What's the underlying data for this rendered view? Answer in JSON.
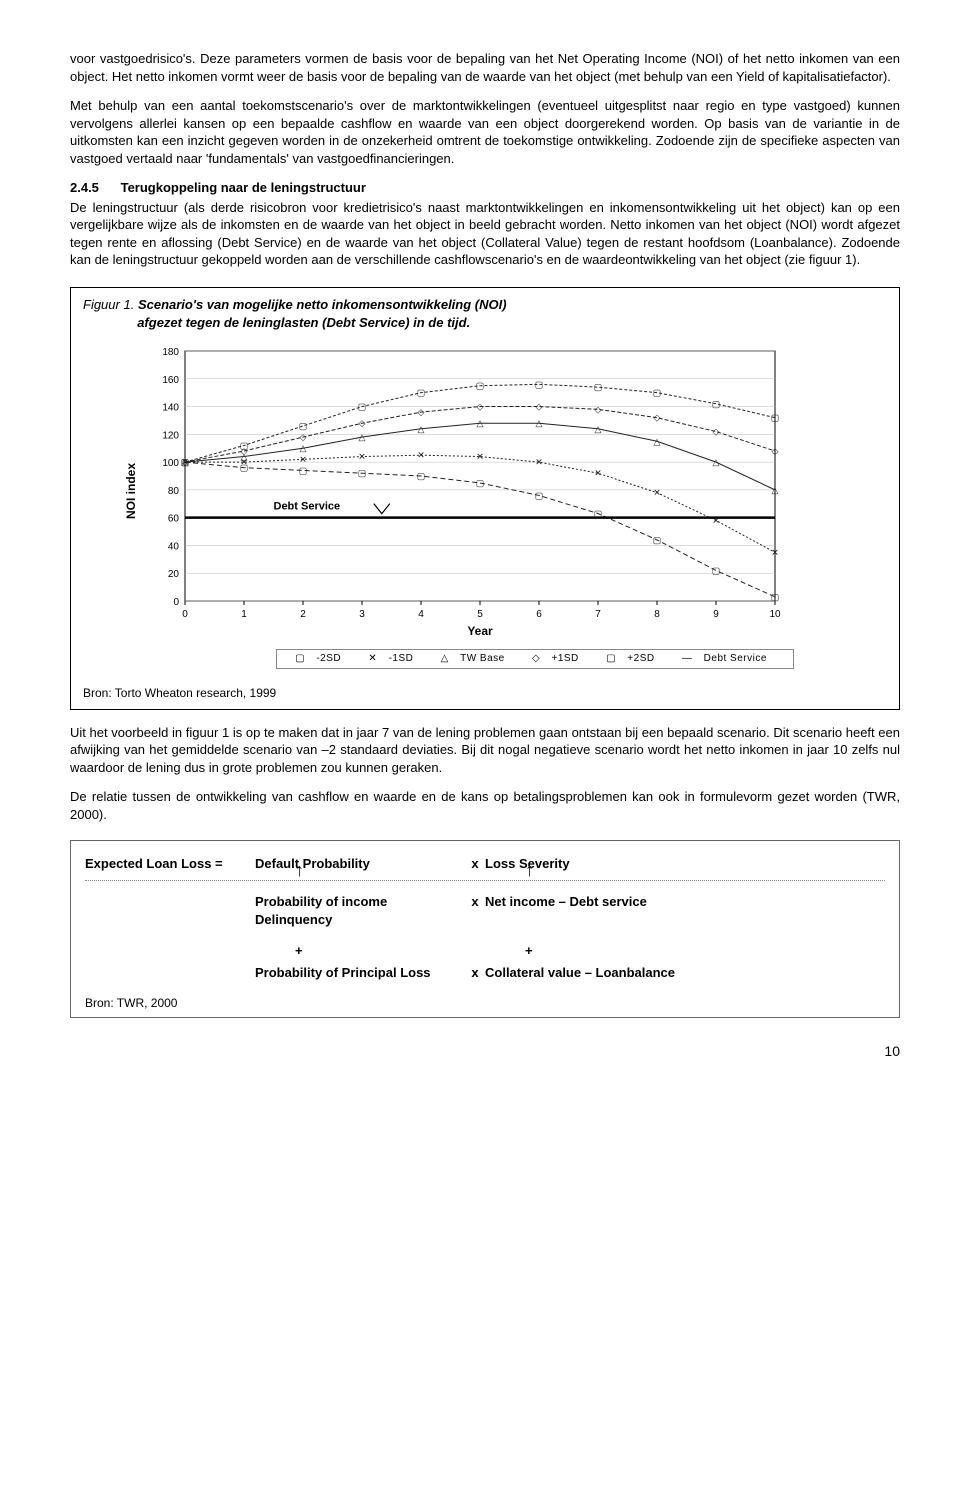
{
  "para1": "voor vastgoedrisico's. Deze parameters vormen de basis voor de bepaling van het Net Operating Income (NOI) of het netto inkomen van een object. Het netto inkomen vormt weer de basis voor de bepaling van de waarde van het object (met behulp van een Yield of kapitalisatiefactor).",
  "para2": "Met behulp van een aantal toekomstscenario's over de marktontwikkelingen (eventueel uitgesplitst naar regio en type vastgoed) kunnen vervolgens allerlei kansen op een bepaalde cashflow en waarde van een object doorgerekend worden. Op basis van de variantie in de uitkomsten kan een inzicht gegeven worden in de onzekerheid omtrent de toekomstige ontwikkeling. Zodoende zijn de specifieke aspecten van vastgoed vertaald naar 'fundamentals' van vastgoedfinancieringen.",
  "section_num": "2.4.5",
  "section_title": "Terugkoppeling naar de leningstructuur",
  "para3": "De leningstructuur (als derde risicobron voor kredietrisico's naast marktontwikkelingen en inkomensontwikkeling uit het object) kan op een vergelijkbare wijze als de inkomsten en de waarde van het object in beeld gebracht worden. Netto inkomen van het object (NOI) wordt afgezet tegen rente en aflossing (Debt Service) en de waarde van het object (Collateral Value) tegen de restant hoofdsom (Loanbalance). Zodoende kan de leningstructuur gekoppeld worden aan de verschillende cashflowscenario's en de waardeontwikkeling van het object (zie figuur 1).",
  "fig_label": "Figuur 1.",
  "fig_caption_l1": "Scenario's van mogelijke netto inkomensontwikkeling (NOI)",
  "fig_caption_l2": "afgezet tegen de leninglasten (Debt Service) in de tijd.",
  "chart": {
    "ylabel": "NOI index",
    "xlabel": "Year",
    "xlim": [
      0,
      10
    ],
    "ylim": [
      0,
      180
    ],
    "ytick_step": 20,
    "xtick_step": 1,
    "debt_label": "Debt Service",
    "background": "#ffffff",
    "grid_color": "#bbbbbb",
    "axis_color": "#000000",
    "line_color": "#222222",
    "series": {
      "m2sd": [
        100,
        96,
        94,
        92,
        90,
        85,
        76,
        63,
        44,
        22,
        3
      ],
      "m1sd": [
        100,
        100,
        102,
        104,
        105,
        104,
        100,
        92,
        78,
        58,
        35
      ],
      "base": [
        100,
        104,
        110,
        118,
        124,
        128,
        128,
        124,
        115,
        100,
        80
      ],
      "p1sd": [
        100,
        108,
        118,
        128,
        136,
        140,
        140,
        138,
        132,
        122,
        108
      ],
      "p2sd": [
        100,
        112,
        126,
        140,
        150,
        155,
        156,
        154,
        150,
        142,
        132
      ],
      "debt": [
        60,
        60,
        60,
        60,
        60,
        60,
        60,
        60,
        60,
        60,
        60
      ]
    },
    "legend": {
      "m2sd": "-2SD",
      "m1sd": "-1SD",
      "base": "TW Base",
      "p1sd": "+1SD",
      "p2sd": "+2SD",
      "debt": "Debt Service"
    },
    "markers": {
      "m2sd": "▢",
      "m1sd": "✕",
      "base": "△",
      "p1sd": "◇",
      "p2sd": "▢",
      "debt": ""
    }
  },
  "fig_bron": "Bron: Torto Wheaton research, 1999",
  "para4": "Uit het voorbeeld in figuur 1 is op te maken dat in jaar 7 van de lening problemen gaan ontstaan bij een bepaald scenario. Dit scenario heeft een afwijking van het gemiddelde scenario van –2 standaard deviaties. Bij dit nogal negatieve scenario wordt het netto inkomen in jaar 10 zelfs nul waardoor de lening dus in grote problemen zou kunnen geraken.",
  "para5": "De relatie tussen de ontwikkeling van cashflow en waarde en de kans op betalingsproblemen kan ook in formulevorm gezet worden (TWR, 2000).",
  "formula": {
    "lhs": "Expected Loan Loss  =",
    "r1c2": "Default Probability",
    "r1c3": "x",
    "r1c4": "Loss Severity",
    "r2c2": "Probability of income Delinquency",
    "r2c3": "x",
    "r2c4": "Net income – Debt service",
    "plus": "+",
    "r3c2": "Probability of Principal Loss",
    "r3c3": "x",
    "r3c4": "Collateral value – Loanbalance",
    "bron": "Bron: TWR, 2000"
  },
  "page_number": "10"
}
